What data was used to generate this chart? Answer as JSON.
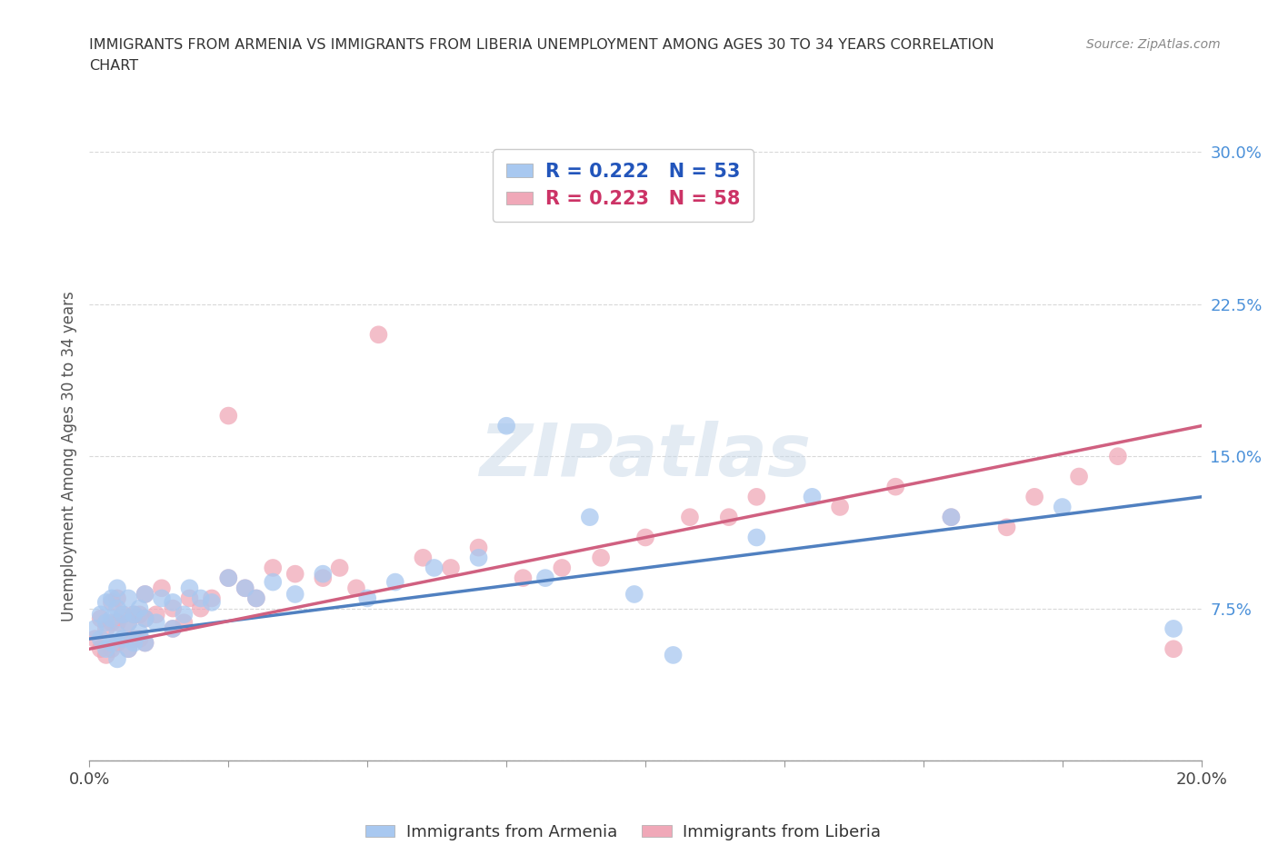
{
  "title_line1": "IMMIGRANTS FROM ARMENIA VS IMMIGRANTS FROM LIBERIA UNEMPLOYMENT AMONG AGES 30 TO 34 YEARS CORRELATION",
  "title_line2": "CHART",
  "source_text": "Source: ZipAtlas.com",
  "ylabel": "Unemployment Among Ages 30 to 34 years",
  "xlim": [
    0.0,
    0.2
  ],
  "ylim": [
    0.0,
    0.3
  ],
  "xticks": [
    0.0,
    0.025,
    0.05,
    0.075,
    0.1,
    0.125,
    0.15,
    0.175,
    0.2
  ],
  "yticks": [
    0.0,
    0.075,
    0.15,
    0.225,
    0.3
  ],
  "ytick_labels": [
    "",
    "7.5%",
    "15.0%",
    "22.5%",
    "30.0%"
  ],
  "armenia_color": "#a8c8f0",
  "liberia_color": "#f0a8b8",
  "armenia_line_color": "#5080c0",
  "liberia_line_color": "#d06080",
  "R_armenia": 0.222,
  "N_armenia": 53,
  "R_liberia": 0.223,
  "N_liberia": 58,
  "watermark": "ZIPatlas",
  "background_color": "#ffffff",
  "grid_color": "#d8d8d8",
  "armenia_scatter_x": [
    0.001,
    0.002,
    0.002,
    0.003,
    0.003,
    0.003,
    0.004,
    0.004,
    0.004,
    0.005,
    0.005,
    0.005,
    0.005,
    0.006,
    0.006,
    0.007,
    0.007,
    0.007,
    0.008,
    0.008,
    0.009,
    0.009,
    0.01,
    0.01,
    0.01,
    0.012,
    0.013,
    0.015,
    0.015,
    0.017,
    0.018,
    0.02,
    0.022,
    0.025,
    0.028,
    0.03,
    0.033,
    0.037,
    0.042,
    0.05,
    0.055,
    0.062,
    0.07,
    0.075,
    0.082,
    0.09,
    0.098,
    0.105,
    0.12,
    0.13,
    0.155,
    0.175,
    0.195
  ],
  "armenia_scatter_y": [
    0.065,
    0.06,
    0.072,
    0.055,
    0.068,
    0.078,
    0.058,
    0.07,
    0.08,
    0.05,
    0.062,
    0.075,
    0.085,
    0.06,
    0.072,
    0.055,
    0.068,
    0.08,
    0.058,
    0.072,
    0.063,
    0.075,
    0.058,
    0.07,
    0.082,
    0.068,
    0.08,
    0.065,
    0.078,
    0.072,
    0.085,
    0.08,
    0.078,
    0.09,
    0.085,
    0.08,
    0.088,
    0.082,
    0.092,
    0.08,
    0.088,
    0.095,
    0.1,
    0.165,
    0.09,
    0.12,
    0.082,
    0.052,
    0.11,
    0.13,
    0.12,
    0.125,
    0.065
  ],
  "liberia_scatter_x": [
    0.001,
    0.002,
    0.002,
    0.003,
    0.003,
    0.004,
    0.004,
    0.004,
    0.005,
    0.005,
    0.005,
    0.006,
    0.006,
    0.007,
    0.007,
    0.008,
    0.008,
    0.009,
    0.009,
    0.01,
    0.01,
    0.01,
    0.012,
    0.013,
    0.015,
    0.015,
    0.017,
    0.018,
    0.02,
    0.022,
    0.025,
    0.025,
    0.028,
    0.03,
    0.033,
    0.037,
    0.042,
    0.045,
    0.048,
    0.052,
    0.06,
    0.065,
    0.07,
    0.078,
    0.085,
    0.092,
    0.1,
    0.108,
    0.115,
    0.12,
    0.135,
    0.145,
    0.155,
    0.165,
    0.17,
    0.178,
    0.185,
    0.195
  ],
  "liberia_scatter_y": [
    0.06,
    0.055,
    0.07,
    0.052,
    0.065,
    0.055,
    0.068,
    0.078,
    0.058,
    0.068,
    0.08,
    0.06,
    0.072,
    0.055,
    0.068,
    0.06,
    0.072,
    0.06,
    0.072,
    0.058,
    0.07,
    0.082,
    0.072,
    0.085,
    0.065,
    0.075,
    0.068,
    0.08,
    0.075,
    0.08,
    0.09,
    0.17,
    0.085,
    0.08,
    0.095,
    0.092,
    0.09,
    0.095,
    0.085,
    0.21,
    0.1,
    0.095,
    0.105,
    0.09,
    0.095,
    0.1,
    0.11,
    0.12,
    0.12,
    0.13,
    0.125,
    0.135,
    0.12,
    0.115,
    0.13,
    0.14,
    0.15,
    0.055
  ],
  "arm_trend": [
    0.06,
    0.13
  ],
  "lib_trend": [
    0.055,
    0.165
  ]
}
